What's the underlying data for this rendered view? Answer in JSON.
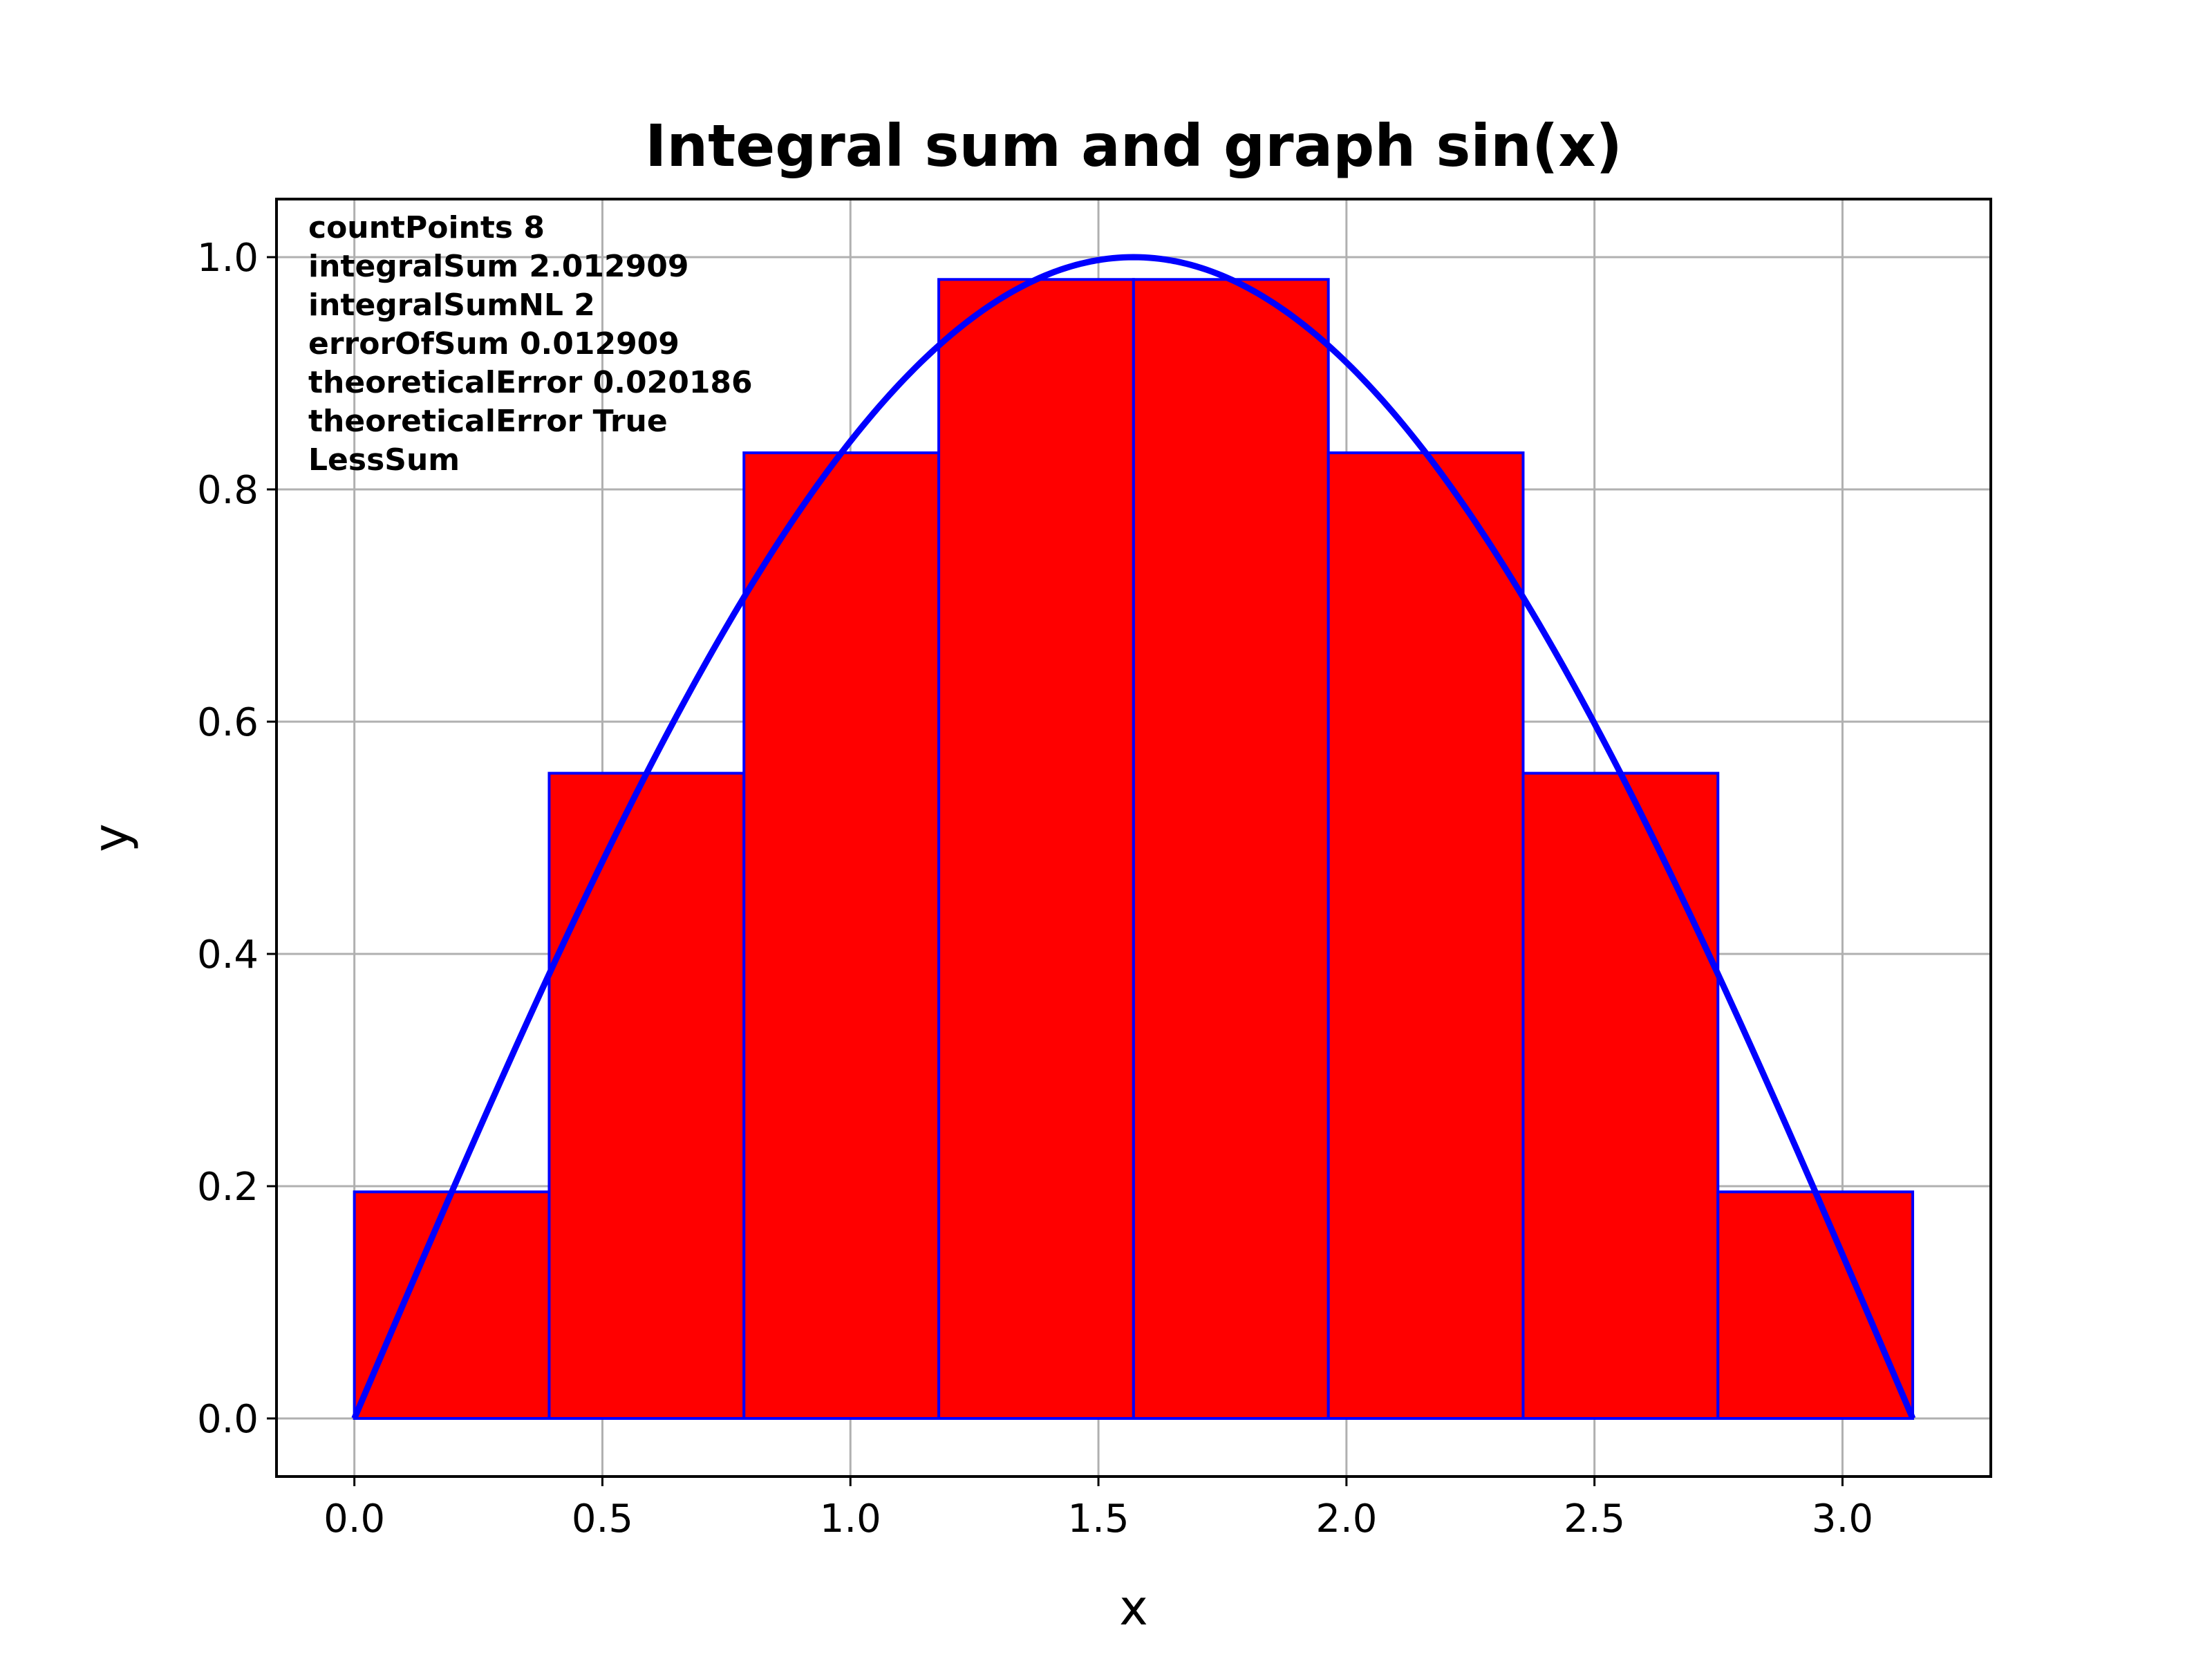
{
  "chart_data": {
    "type": "bar",
    "title": "Integral sum and graph sin(x)",
    "xlabel": "x",
    "ylabel": "y",
    "xlim": [
      -0.157,
      3.299
    ],
    "ylim": [
      -0.05,
      1.05
    ],
    "xticks": [
      0.0,
      0.5,
      1.0,
      1.5,
      2.0,
      2.5,
      3.0
    ],
    "xtick_labels": [
      "0.0",
      "0.5",
      "1.0",
      "1.5",
      "2.0",
      "2.5",
      "3.0"
    ],
    "yticks": [
      0.0,
      0.2,
      0.4,
      0.6,
      0.8,
      1.0
    ],
    "ytick_labels": [
      "0.0",
      "0.2",
      "0.4",
      "0.6",
      "0.8",
      "1.0"
    ],
    "grid": true,
    "bars": {
      "x_left": [
        0.0,
        0.3927,
        0.7854,
        1.1781,
        1.5708,
        1.9635,
        2.3562,
        2.7489
      ],
      "width": 0.3927,
      "heights": [
        0.1951,
        0.5556,
        0.8315,
        0.9808,
        0.9808,
        0.8315,
        0.5556,
        0.1951
      ],
      "fill_color": "#ff0000",
      "edge_color": "#0000ff"
    },
    "series": [
      {
        "type": "line",
        "function": "sin(x)",
        "x_range": [
          0,
          3.14159
        ],
        "color": "#0000ff"
      }
    ],
    "annotations": [
      "countPoints 8",
      "integralSum 2.012909",
      "integralSumNL 2",
      "errorOfSum 0.012909",
      "theoreticalError 0.020186",
      "theoreticalError True",
      "LessSum"
    ]
  }
}
